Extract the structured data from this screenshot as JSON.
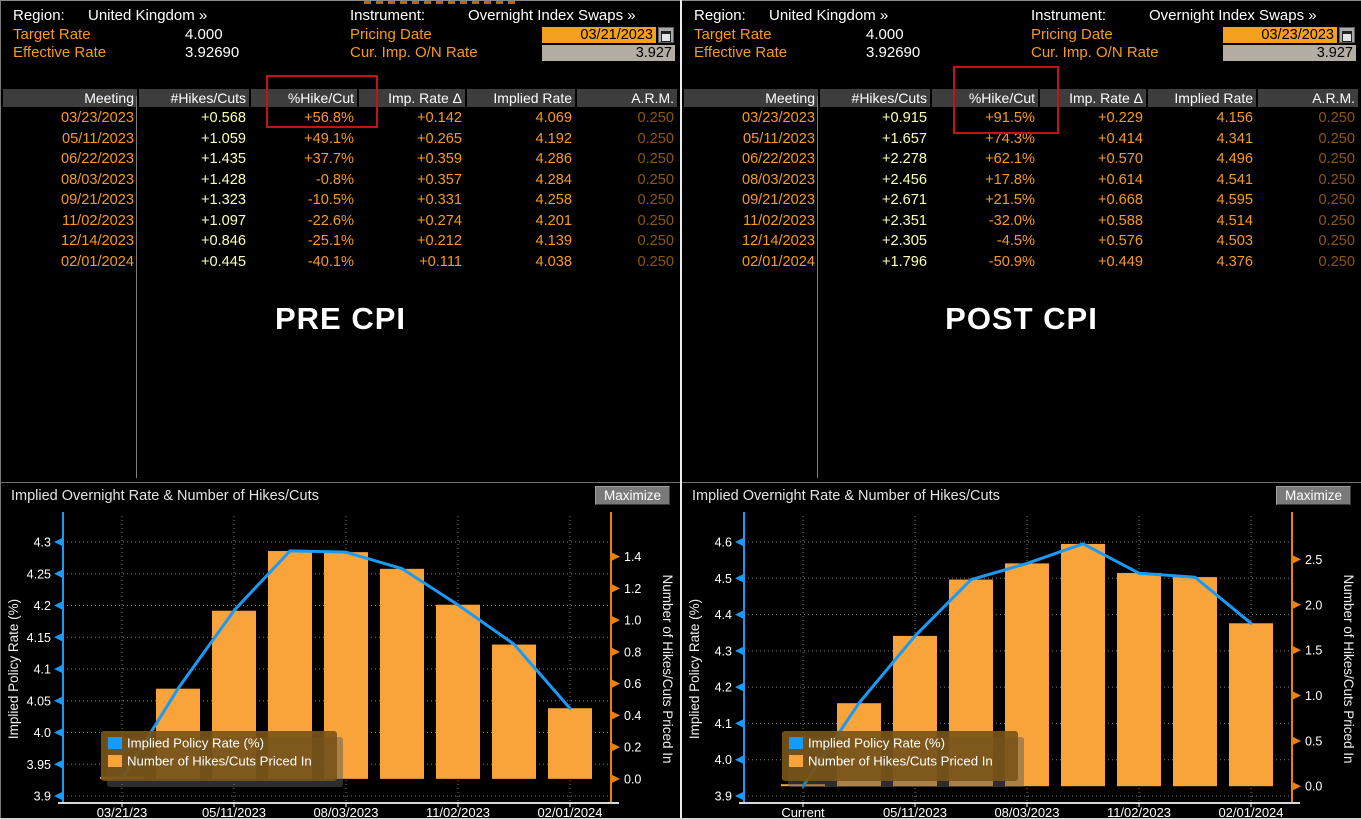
{
  "colors": {
    "orange_text": "#f89a1c",
    "pale_yellow": "#ffffb2",
    "dim_orange": "#8f5610",
    "bar_orange": "#f9a43b",
    "line_blue": "#1b9af5",
    "red_highlight": "#c31414",
    "amber_input": "#f3a01f",
    "gray_field": "#b3ada3",
    "header_row_bg": "#3d3d3d"
  },
  "panels": [
    {
      "annotation": "PRE CPI",
      "maximize_label": "Maximize",
      "header": {
        "region_label": "Region:",
        "region_value": "United Kingdom »",
        "instrument_label": "Instrument:",
        "instrument_value": "Overnight Index Swaps »",
        "target_rate_label": "Target Rate",
        "target_rate_value": "4.000",
        "effective_rate_label": "Effective Rate",
        "effective_rate_value": "3.92690",
        "pricing_date_label": "Pricing Date",
        "pricing_date_value": "03/21/2023",
        "cur_imp_label": "Cur. Imp. O/N Rate",
        "cur_imp_value": "3.927"
      },
      "table": {
        "columns": [
          "Meeting",
          "#Hikes/Cuts",
          "%Hike/Cut",
          "Imp. Rate Δ",
          "Implied Rate",
          "A.R.M."
        ],
        "rows": [
          [
            "03/23/2023",
            "+0.568",
            "+56.8%",
            "+0.142",
            "4.069",
            "0.250"
          ],
          [
            "05/11/2023",
            "+1.059",
            "+49.1%",
            "+0.265",
            "4.192",
            "0.250"
          ],
          [
            "06/22/2023",
            "+1.435",
            "+37.7%",
            "+0.359",
            "4.286",
            "0.250"
          ],
          [
            "08/03/2023",
            "+1.428",
            "-0.8%",
            "+0.357",
            "4.284",
            "0.250"
          ],
          [
            "09/21/2023",
            "+1.323",
            "-10.5%",
            "+0.331",
            "4.258",
            "0.250"
          ],
          [
            "11/02/2023",
            "+1.097",
            "-22.6%",
            "+0.274",
            "4.201",
            "0.250"
          ],
          [
            "12/14/2023",
            "+0.846",
            "-25.1%",
            "+0.212",
            "4.139",
            "0.250"
          ],
          [
            "02/01/2024",
            "+0.445",
            "-40.1%",
            "+0.111",
            "4.038",
            "0.250"
          ]
        ]
      }
    },
    {
      "annotation": "POST CPI",
      "maximize_label": "Maximize",
      "header": {
        "region_label": "Region:",
        "region_value": "United Kingdom »",
        "instrument_label": "Instrument:",
        "instrument_value": "Overnight Index Swaps »",
        "target_rate_label": "Target Rate",
        "target_rate_value": "4.000",
        "effective_rate_label": "Effective Rate",
        "effective_rate_value": "3.92690",
        "pricing_date_label": "Pricing Date",
        "pricing_date_value": "03/23/2023",
        "cur_imp_label": "Cur. Imp. O/N Rate",
        "cur_imp_value": "3.927"
      },
      "table": {
        "columns": [
          "Meeting",
          "#Hikes/Cuts",
          "%Hike/Cut",
          "Imp. Rate Δ",
          "Implied Rate",
          "A.R.M."
        ],
        "rows": [
          [
            "03/23/2023",
            "+0.915",
            "+91.5%",
            "+0.229",
            "4.156",
            "0.250"
          ],
          [
            "05/11/2023",
            "+1.657",
            "+74.3%",
            "+0.414",
            "4.341",
            "0.250"
          ],
          [
            "06/22/2023",
            "+2.278",
            "+62.1%",
            "+0.570",
            "4.496",
            "0.250"
          ],
          [
            "08/03/2023",
            "+2.456",
            "+17.8%",
            "+0.614",
            "4.541",
            "0.250"
          ],
          [
            "09/21/2023",
            "+2.671",
            "+21.5%",
            "+0.668",
            "4.595",
            "0.250"
          ],
          [
            "11/02/2023",
            "+2.351",
            "-32.0%",
            "+0.588",
            "4.514",
            "0.250"
          ],
          [
            "12/14/2023",
            "+2.305",
            "-4.5%",
            "+0.576",
            "4.503",
            "0.250"
          ],
          [
            "02/01/2024",
            "+1.796",
            "-50.9%",
            "+0.449",
            "4.376",
            "0.250"
          ]
        ]
      }
    }
  ],
  "chart_data": [
    {
      "type": "bar",
      "title": "Implied Overnight Rate & Number of Hikes/Cuts",
      "x_categories": [
        "03/21/23",
        "03/23/2023",
        "05/11/2023",
        "06/22/2023",
        "08/03/2023",
        "09/21/2023",
        "11/02/2023",
        "12/14/2023",
        "02/01/2024"
      ],
      "x_tick_indices": [
        0,
        2,
        4,
        6,
        8
      ],
      "x_tick_labels": [
        "03/21/23",
        "05/11/2023",
        "08/03/2023",
        "11/02/2023",
        "02/01/2024"
      ],
      "series": [
        {
          "name": "Implied Policy Rate (%)",
          "kind": "line",
          "axis": "left",
          "color": "#1b9af5",
          "values": [
            3.927,
            4.069,
            4.192,
            4.286,
            4.284,
            4.258,
            4.201,
            4.139,
            4.038
          ]
        },
        {
          "name": "Number of Hikes/Cuts Priced In",
          "kind": "bar",
          "axis": "right",
          "color": "#f9a43b",
          "values": [
            0.0,
            0.568,
            1.059,
            1.435,
            1.428,
            1.323,
            1.097,
            0.846,
            0.445
          ]
        }
      ],
      "left_axis": {
        "label": "Implied Policy Rate (%)",
        "range": [
          3.9,
          4.3
        ],
        "tick_values": [
          3.9,
          3.95,
          4.0,
          4.05,
          4.1,
          4.15,
          4.2,
          4.25,
          4.3
        ],
        "tick_labels": [
          "3.9",
          "3.95",
          "4.0",
          "4.05",
          "4.1",
          "4.15",
          "4.2",
          "4.25",
          "4.3"
        ]
      },
      "right_axis": {
        "label": "Number of Hikes/Cuts Priced In",
        "range": [
          0.0,
          1.4
        ],
        "tick_values": [
          0.0,
          0.2,
          0.4,
          0.6,
          0.8,
          1.0,
          1.2,
          1.4
        ],
        "tick_labels": [
          "0.0",
          "0.2",
          "0.4",
          "0.6",
          "0.8",
          "1.0",
          "1.2",
          "1.4"
        ],
        "transform": {
          "base": 3.927,
          "per_hike": 0.25
        }
      },
      "legend": {
        "position": "bottom-left",
        "entries": [
          {
            "label": "Implied Policy Rate (%)",
            "color": "#1b9af5"
          },
          {
            "label": "Number of Hikes/Cuts Priced In",
            "color": "#f9a43b"
          }
        ]
      },
      "grid": "dotted"
    },
    {
      "type": "bar",
      "title": "Implied Overnight Rate & Number of Hikes/Cuts",
      "x_categories": [
        "Current",
        "03/23/2023",
        "05/11/2023",
        "06/22/2023",
        "08/03/2023",
        "09/21/2023",
        "11/02/2023",
        "12/14/2023",
        "02/01/2024"
      ],
      "x_tick_indices": [
        0,
        2,
        4,
        6,
        8
      ],
      "x_tick_labels": [
        "Current",
        "05/11/2023",
        "08/03/2023",
        "11/02/2023",
        "02/01/2024"
      ],
      "series": [
        {
          "name": "Implied Policy Rate (%)",
          "kind": "line",
          "axis": "left",
          "color": "#1b9af5",
          "values": [
            3.927,
            4.156,
            4.341,
            4.496,
            4.541,
            4.595,
            4.514,
            4.503,
            4.376
          ]
        },
        {
          "name": "Number of Hikes/Cuts Priced In",
          "kind": "bar",
          "axis": "right",
          "color": "#f9a43b",
          "values": [
            0.0,
            0.915,
            1.657,
            2.278,
            2.456,
            2.671,
            2.351,
            2.305,
            1.796
          ]
        }
      ],
      "left_axis": {
        "label": "Implied Policy Rate (%)",
        "range": [
          3.9,
          4.6
        ],
        "tick_values": [
          3.9,
          4.0,
          4.1,
          4.2,
          4.3,
          4.4,
          4.5,
          4.6
        ],
        "tick_labels": [
          "3.9",
          "4.0",
          "4.1",
          "4.2",
          "4.3",
          "4.4",
          "4.5",
          "4.6"
        ]
      },
      "right_axis": {
        "label": "Number of Hikes/Cuts Priced In",
        "range": [
          0.0,
          2.5
        ],
        "tick_values": [
          0.0,
          0.5,
          1.0,
          1.5,
          2.0,
          2.5
        ],
        "tick_labels": [
          "0.0",
          "0.5",
          "1.0",
          "1.5",
          "2.0",
          "2.5"
        ],
        "transform": {
          "base": 3.927,
          "per_hike": 0.25
        }
      },
      "legend": {
        "position": "bottom-left",
        "entries": [
          {
            "label": "Implied Policy Rate (%)",
            "color": "#1b9af5"
          },
          {
            "label": "Number of Hikes/Cuts Priced In",
            "color": "#f9a43b"
          }
        ]
      },
      "grid": "dotted"
    }
  ]
}
